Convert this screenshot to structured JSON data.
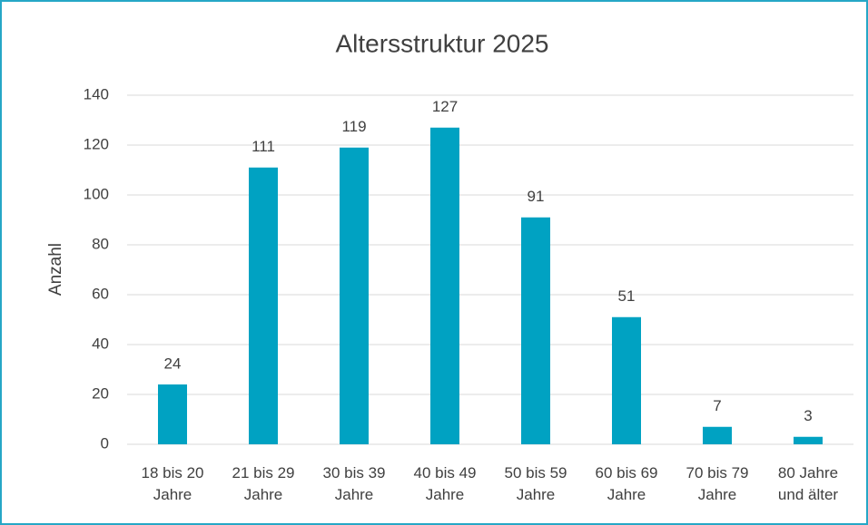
{
  "chart_data": {
    "type": "bar",
    "title": "Altersstruktur 2025",
    "y_label": "Anzahl",
    "categories": [
      "18 bis 20\nJahre",
      "21 bis 29\nJahre",
      "30 bis 39\nJahre",
      "40 bis 49\nJahre",
      "50 bis 59\nJahre",
      "60 bis 69\nJahre",
      "70 bis 79\nJahre",
      "80 Jahre\nund älter"
    ],
    "values": [
      24,
      111,
      119,
      127,
      91,
      51,
      7,
      3
    ],
    "color": "#00a2c2",
    "ylim": [
      0,
      140
    ],
    "yticks": [
      0,
      20,
      40,
      60,
      80,
      100,
      120,
      140
    ],
    "grid": true
  }
}
